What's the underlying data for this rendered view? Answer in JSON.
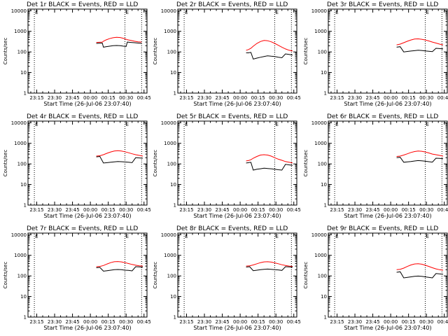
{
  "colors": {
    "events": "#000000",
    "lld": "#ff0000",
    "background": "#ffffff",
    "axes": "#000000"
  },
  "shared": {
    "xlabel": "Start Time (26-Jul-06 23:07:40)",
    "ylabel": "Counts/sec",
    "ylim": [
      1,
      12000
    ],
    "yscale": "log",
    "xlim": [
      "23:07:40",
      "00:47:30"
    ],
    "y_ticks": [
      {
        "v": 1,
        "label": "1"
      },
      {
        "v": 10,
        "label": "10"
      },
      {
        "v": 100,
        "label": "100"
      },
      {
        "v": 1000,
        "label": "1000"
      },
      {
        "v": 10000,
        "label": "10000"
      }
    ],
    "x_ticks": [
      "23:15",
      "23:30",
      "23:45",
      "00:00",
      "00:15",
      "00:30",
      "00:45"
    ],
    "marker_label": "E",
    "vlines": [
      "23:13",
      "00:29",
      "00:43"
    ]
  },
  "chart_data": [
    {
      "type": "line",
      "title": "Det 1r BLACK = Events, RED = LLD",
      "x": [
        "00:05",
        "00:10",
        "00:11",
        "00:13",
        "00:16",
        "00:19",
        "00:22",
        "00:25",
        "00:28",
        "00:30",
        "00:31",
        "00:34",
        "00:37",
        "00:40",
        "00:43"
      ],
      "series": [
        {
          "name": "LLD",
          "color": "#ff0000",
          "values": [
            290,
            300,
            330,
            380,
            440,
            490,
            510,
            500,
            450,
            410,
            390,
            360,
            330,
            310,
            300
          ]
        },
        {
          "name": "Events",
          "color": "#000000",
          "values": [
            260,
            270,
            170,
            180,
            190,
            200,
            205,
            200,
            190,
            185,
            300,
            290,
            280,
            270,
            260
          ]
        }
      ]
    },
    {
      "type": "line",
      "title": "Det 2r BLACK = Events, RED = LLD",
      "x": [
        "00:05",
        "00:07",
        "00:09",
        "00:11",
        "00:14",
        "00:17",
        "00:20",
        "00:23",
        "00:26",
        "00:29",
        "00:32",
        "00:35",
        "00:38",
        "00:41",
        "00:44"
      ],
      "series": [
        {
          "name": "LLD",
          "color": "#ff0000",
          "values": [
            120,
            130,
            150,
            190,
            260,
            320,
            360,
            350,
            310,
            260,
            210,
            170,
            140,
            120,
            110
          ]
        },
        {
          "name": "Events",
          "color": "#000000",
          "values": [
            90,
            90,
            95,
            45,
            50,
            55,
            60,
            65,
            62,
            60,
            55,
            52,
            80,
            75,
            70
          ]
        }
      ]
    },
    {
      "type": "line",
      "title": "Det 3r BLACK = Events, RED = LLD",
      "x": [
        "00:05",
        "00:08",
        "00:11",
        "00:14",
        "00:17",
        "00:20",
        "00:23",
        "00:26",
        "00:29",
        "00:32",
        "00:35",
        "00:38",
        "00:41",
        "00:44"
      ],
      "series": [
        {
          "name": "LLD",
          "color": "#ff0000",
          "values": [
            220,
            240,
            280,
            330,
            380,
            420,
            430,
            410,
            380,
            340,
            300,
            270,
            240,
            220
          ]
        },
        {
          "name": "Events",
          "color": "#000000",
          "values": [
            170,
            180,
            100,
            105,
            110,
            115,
            120,
            118,
            112,
            108,
            104,
            150,
            145,
            140
          ]
        }
      ]
    },
    {
      "type": "line",
      "title": "Det 4r BLACK = Events, RED = LLD",
      "x": [
        "00:05",
        "00:08",
        "00:11",
        "00:14",
        "00:17",
        "00:20",
        "00:23",
        "00:26",
        "00:29",
        "00:32",
        "00:35",
        "00:38",
        "00:41",
        "00:44"
      ],
      "series": [
        {
          "name": "LLD",
          "color": "#ff0000",
          "values": [
            240,
            250,
            280,
            330,
            380,
            420,
            440,
            420,
            390,
            350,
            310,
            280,
            260,
            240
          ]
        },
        {
          "name": "Events",
          "color": "#000000",
          "values": [
            220,
            230,
            110,
            115,
            120,
            125,
            130,
            128,
            124,
            120,
            115,
            200,
            195,
            190
          ]
        }
      ]
    },
    {
      "type": "line",
      "title": "Det 5r BLACK = Events, RED = LLD",
      "x": [
        "00:05",
        "00:07",
        "00:09",
        "00:11",
        "00:14",
        "00:17",
        "00:20",
        "00:23",
        "00:26",
        "00:29",
        "00:32",
        "00:35",
        "00:38",
        "00:41",
        "00:44"
      ],
      "series": [
        {
          "name": "LLD",
          "color": "#ff0000",
          "values": [
            140,
            145,
            160,
            190,
            230,
            270,
            280,
            270,
            240,
            200,
            170,
            150,
            130,
            120,
            110
          ]
        },
        {
          "name": "Events",
          "color": "#000000",
          "values": [
            110,
            115,
            120,
            50,
            55,
            58,
            62,
            60,
            58,
            55,
            52,
            50,
            95,
            90,
            85
          ]
        }
      ]
    },
    {
      "type": "line",
      "title": "Det 6r BLACK = Events, RED = LLD",
      "x": [
        "00:05",
        "00:08",
        "00:11",
        "00:14",
        "00:17",
        "00:20",
        "00:23",
        "00:26",
        "00:29",
        "00:32",
        "00:35",
        "00:38",
        "00:41",
        "00:44"
      ],
      "series": [
        {
          "name": "LLD",
          "color": "#ff0000",
          "values": [
            230,
            240,
            270,
            310,
            360,
            400,
            420,
            410,
            380,
            340,
            300,
            280,
            260,
            240
          ]
        },
        {
          "name": "Events",
          "color": "#000000",
          "values": [
            200,
            210,
            120,
            125,
            130,
            138,
            145,
            142,
            135,
            128,
            122,
            190,
            185,
            180
          ]
        }
      ]
    },
    {
      "type": "line",
      "title": "Det 7r BLACK = Events, RED = LLD",
      "x": [
        "00:05",
        "00:08",
        "00:11",
        "00:14",
        "00:17",
        "00:20",
        "00:23",
        "00:26",
        "00:29",
        "00:32",
        "00:35",
        "00:38",
        "00:41",
        "00:44"
      ],
      "series": [
        {
          "name": "LLD",
          "color": "#ff0000",
          "values": [
            280,
            290,
            320,
            380,
            440,
            490,
            500,
            480,
            440,
            400,
            360,
            330,
            310,
            300
          ]
        },
        {
          "name": "Events",
          "color": "#000000",
          "values": [
            250,
            260,
            170,
            180,
            190,
            200,
            205,
            200,
            190,
            185,
            175,
            280,
            275,
            270
          ]
        }
      ]
    },
    {
      "type": "line",
      "title": "Det 8r BLACK = Events, RED = LLD",
      "x": [
        "00:05",
        "00:08",
        "00:11",
        "00:14",
        "00:17",
        "00:20",
        "00:23",
        "00:26",
        "00:29",
        "00:32",
        "00:35",
        "00:38",
        "00:41",
        "00:44"
      ],
      "series": [
        {
          "name": "LLD",
          "color": "#ff0000",
          "values": [
            300,
            310,
            340,
            390,
            440,
            480,
            490,
            470,
            430,
            390,
            350,
            320,
            300,
            290
          ]
        },
        {
          "name": "Events",
          "color": "#000000",
          "values": [
            270,
            280,
            180,
            190,
            200,
            210,
            215,
            210,
            200,
            195,
            185,
            280,
            275,
            270
          ]
        }
      ]
    },
    {
      "type": "line",
      "title": "Det 9r BLACK = Events, RED = LLD",
      "x": [
        "00:05",
        "00:08",
        "00:11",
        "00:14",
        "00:17",
        "00:20",
        "00:23",
        "00:26",
        "00:29",
        "00:32",
        "00:35",
        "00:38",
        "00:41",
        "00:44"
      ],
      "series": [
        {
          "name": "LLD",
          "color": "#ff0000",
          "values": [
            200,
            210,
            240,
            290,
            340,
            380,
            390,
            370,
            330,
            290,
            250,
            220,
            200,
            190
          ]
        },
        {
          "name": "Events",
          "color": "#000000",
          "values": [
            150,
            160,
            80,
            85,
            90,
            95,
            98,
            95,
            90,
            85,
            80,
            130,
            125,
            120
          ]
        }
      ]
    }
  ]
}
